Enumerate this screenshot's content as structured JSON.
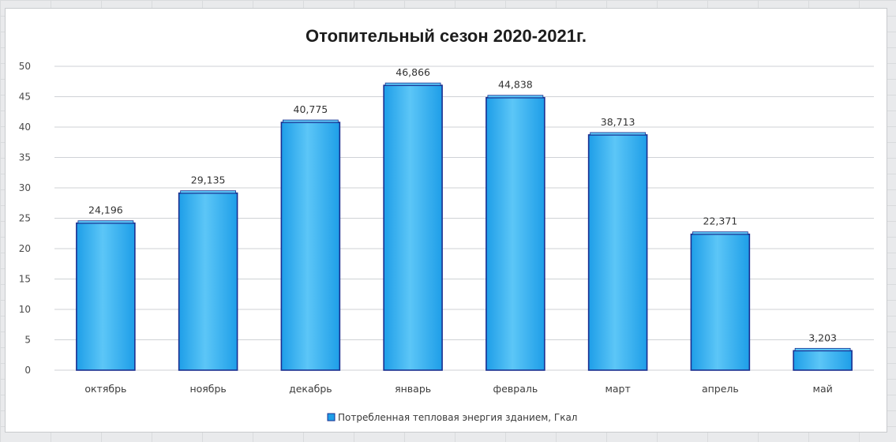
{
  "chart_data": {
    "type": "bar",
    "title": "Отопительный сезон 2020-2021г.",
    "categories": [
      "октябрь",
      "ноябрь",
      "декабрь",
      "январь",
      "февраль",
      "март",
      "апрель",
      "май"
    ],
    "series": [
      {
        "name": "Потребленная тепловая энергия зданием, Гкал",
        "values": [
          24.196,
          29.135,
          40.775,
          46.866,
          44.838,
          38.713,
          22.371,
          3.203
        ],
        "labels": [
          "24,196",
          "29,135",
          "40,775",
          "46,866",
          "44,838",
          "38,713",
          "22,371",
          "3,203"
        ]
      }
    ],
    "ylim": [
      0,
      50
    ],
    "yticks": [
      0,
      5,
      10,
      15,
      20,
      25,
      30,
      35,
      40,
      45,
      50
    ],
    "grid": true,
    "legend_position": "bottom",
    "colors": {
      "bar_fill": "#1e9ee8",
      "bar_light": "#5cc6f7",
      "bar_edge": "#1a2f8f",
      "gridline": "#cfd2d6"
    }
  }
}
